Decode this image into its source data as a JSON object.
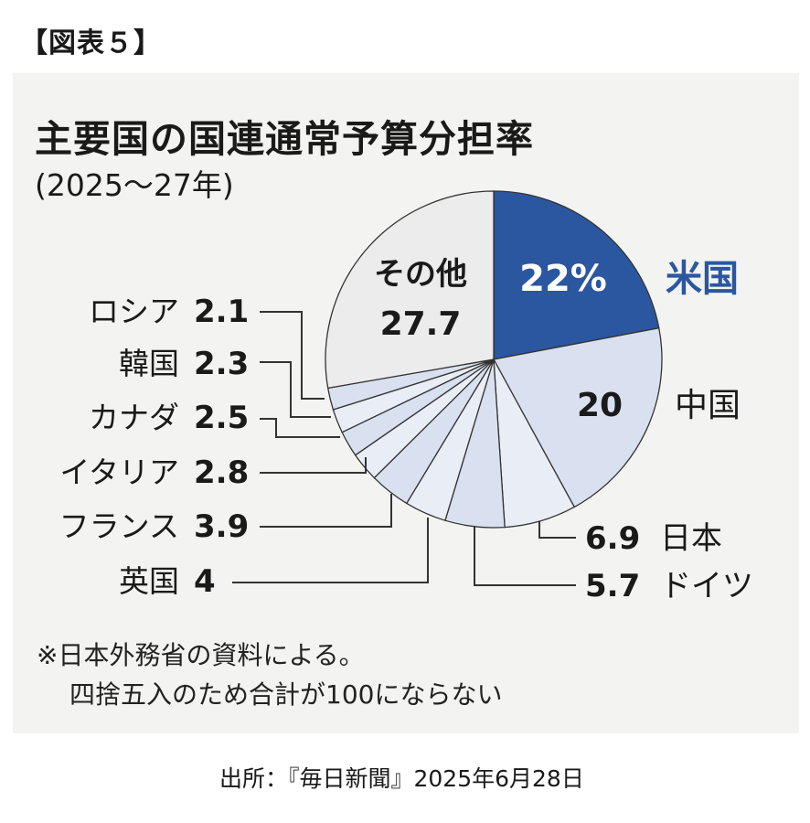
{
  "figure_label": "【図表５】",
  "notes": [
    "※日本外務省の資料による。",
    "四捨五入のため合計が100にならない"
  ],
  "source": "出所：『毎日新聞』2025年6月28日",
  "colors": {
    "us": "#2b56a0",
    "light_slice": "#d9e0ef",
    "pale_slice": "#e9edf5",
    "other": "#ececec",
    "stroke": "#333333",
    "us_label": "#2b56a0"
  },
  "chart_data": {
    "type": "pie",
    "title": "主要国の国連通常予算分担率",
    "subtitle": "(2025～27年)",
    "slices": [
      {
        "name": "米国",
        "value": 22,
        "value_label": "22%"
      },
      {
        "name": "中国",
        "value": 20,
        "value_label": "20"
      },
      {
        "name": "日本",
        "value": 6.9,
        "value_label": "6.9"
      },
      {
        "name": "ドイツ",
        "value": 5.7,
        "value_label": "5.7"
      },
      {
        "name": "英国",
        "value": 4,
        "value_label": "4"
      },
      {
        "name": "フランス",
        "value": 3.9,
        "value_label": "3.9"
      },
      {
        "name": "イタリア",
        "value": 2.8,
        "value_label": "2.8"
      },
      {
        "name": "カナダ",
        "value": 2.5,
        "value_label": "2.5"
      },
      {
        "name": "韓国",
        "value": 2.3,
        "value_label": "2.3"
      },
      {
        "name": "ロシア",
        "value": 2.1,
        "value_label": "2.1"
      },
      {
        "name": "その他",
        "value": 27.7,
        "value_label": "27.7"
      }
    ]
  }
}
